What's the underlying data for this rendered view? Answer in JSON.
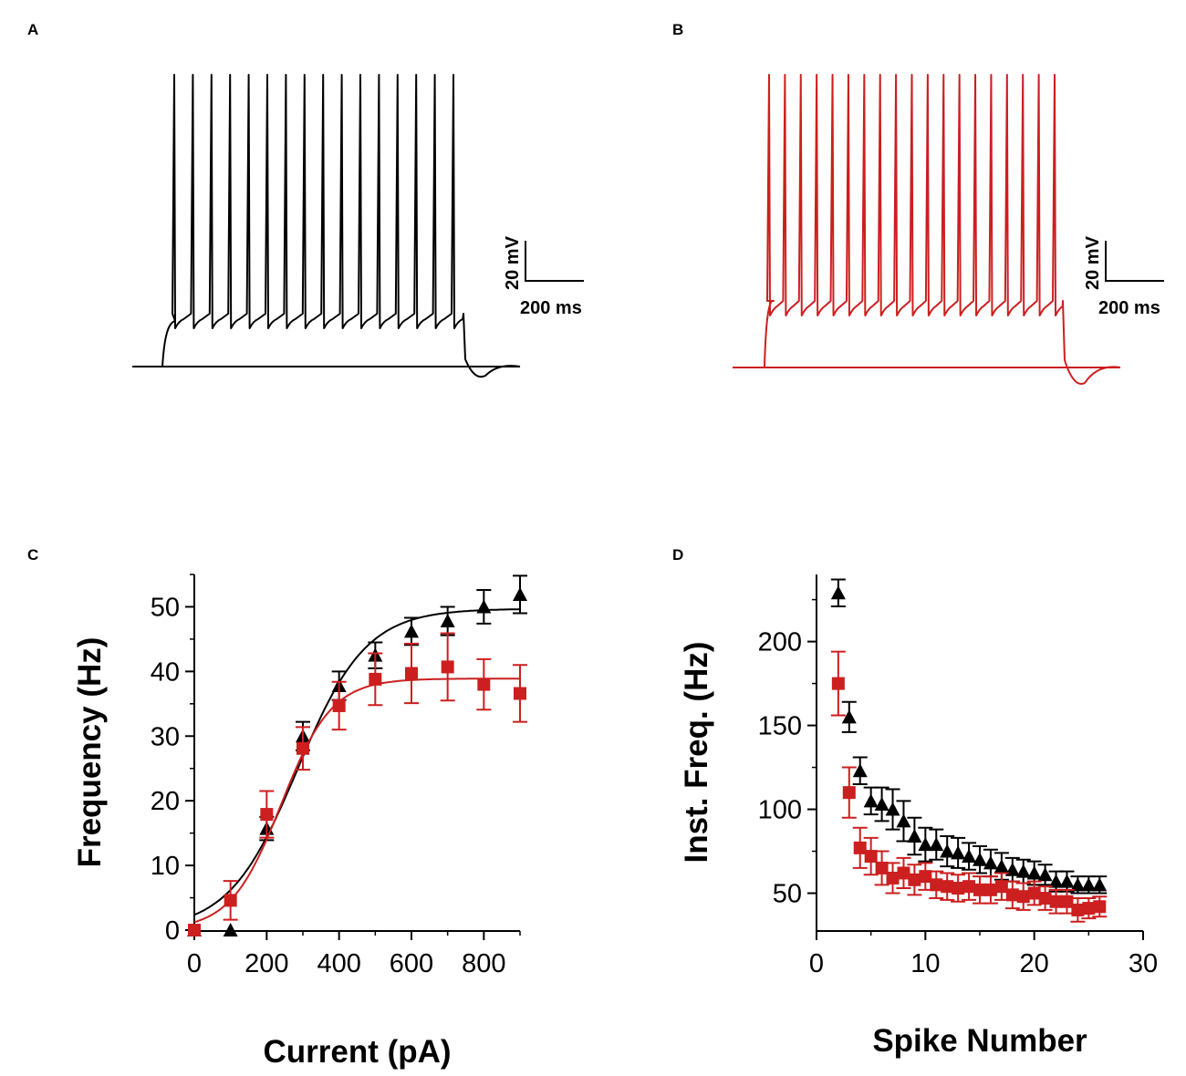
{
  "colors": {
    "control": "#000000",
    "treated": "#cc1f1f"
  },
  "panels": {
    "a": "A",
    "b": "B",
    "c": "C",
    "d": "D"
  },
  "scale_bars": {
    "a": {
      "voltage": "20 mV",
      "time": "200 ms"
    },
    "b": {
      "voltage": "20 mV",
      "time": "200 ms"
    }
  },
  "chart_data": [
    {
      "panel": "A",
      "type": "line",
      "description_type": "voltage-trace",
      "color": "#000000",
      "spike_count": 16
    },
    {
      "panel": "B",
      "type": "line",
      "description_type": "voltage-trace",
      "color": "#cc1f1f",
      "spike_count": 19
    },
    {
      "panel": "C",
      "type": "scatter",
      "xlabel": "Current (pA)",
      "ylabel": "Frequency (Hz)",
      "xlim": [
        0,
        900
      ],
      "ylim": [
        0,
        55
      ],
      "xticks": [
        0,
        200,
        400,
        600,
        800
      ],
      "xtick_labels": [
        "0",
        "200",
        "400",
        "600",
        "800"
      ],
      "yticks": [
        0,
        10,
        20,
        30,
        40,
        50
      ],
      "ytick_labels": [
        "0",
        "10",
        "20",
        "30",
        "40",
        "50"
      ],
      "series": [
        {
          "name": "black",
          "marker": "triangle",
          "color": "#000000",
          "x": [
            0,
            100,
            200,
            300,
            400,
            500,
            600,
            700,
            800,
            900
          ],
          "y": [
            0,
            0,
            15.7,
            30,
            37.8,
            42.5,
            46.2,
            47.8,
            50,
            51.9
          ],
          "err": [
            0,
            0,
            1.8,
            2.2,
            2.2,
            2.0,
            2.1,
            2.2,
            2.6,
            2.9
          ],
          "fit": {
            "max": 49.7,
            "half": 285,
            "slope": 95
          }
        },
        {
          "name": "red",
          "marker": "square",
          "color": "#cc1f1f",
          "x": [
            0,
            100,
            200,
            300,
            400,
            500,
            600,
            700,
            800,
            900
          ],
          "y": [
            0,
            4.6,
            17.9,
            28.1,
            34.7,
            38.8,
            39.7,
            40.7,
            38,
            36.6
          ],
          "err": [
            0,
            3.0,
            3.6,
            3.3,
            3.7,
            4.0,
            4.6,
            5.2,
            3.9,
            4.4
          ],
          "fit": {
            "max": 38.9,
            "half": 240,
            "slope": 70
          }
        }
      ]
    },
    {
      "panel": "D",
      "type": "scatter",
      "xlabel": "Spike Number",
      "ylabel": "Inst. Freq. (Hz)",
      "xlim": [
        0,
        30
      ],
      "ylim": [
        28,
        240
      ],
      "xticks": [
        0,
        10,
        20,
        30
      ],
      "xtick_labels": [
        "0",
        "10",
        "20",
        "30"
      ],
      "yticks": [
        50,
        100,
        150,
        200
      ],
      "ytick_labels": [
        "50",
        "100",
        "150",
        "200"
      ],
      "series": [
        {
          "name": "black",
          "marker": "triangle",
          "color": "#000000",
          "x": [
            2,
            3,
            4,
            5,
            6,
            7,
            8,
            9,
            10,
            11,
            12,
            13,
            14,
            15,
            16,
            17,
            18,
            19,
            20,
            21,
            22,
            23,
            24,
            25,
            26
          ],
          "y": [
            229,
            155,
            123,
            105,
            103,
            100,
            93,
            84,
            79,
            79,
            75,
            74,
            72,
            70,
            68,
            66,
            64,
            63,
            62,
            61,
            57,
            57,
            55,
            55,
            55
          ],
          "err": [
            8,
            9,
            8,
            8,
            10,
            12,
            12,
            11,
            10,
            9,
            9,
            9,
            8,
            8,
            8,
            8,
            7,
            7,
            7,
            6,
            6,
            6,
            5,
            5,
            5
          ]
        },
        {
          "name": "red",
          "marker": "square",
          "color": "#cc1f1f",
          "x": [
            2,
            3,
            4,
            5,
            6,
            7,
            8,
            9,
            10,
            11,
            12,
            13,
            14,
            15,
            16,
            17,
            18,
            19,
            20,
            21,
            22,
            23,
            24,
            25,
            26
          ],
          "y": [
            175,
            110,
            77,
            72,
            65,
            59,
            62,
            58,
            60,
            55,
            54,
            53,
            54,
            52,
            52,
            54,
            49,
            48,
            50,
            47,
            45,
            45,
            40,
            41,
            42
          ],
          "err": [
            19,
            15,
            12,
            11,
            10,
            9,
            9,
            9,
            8,
            8,
            8,
            8,
            8,
            8,
            8,
            8,
            8,
            8,
            7,
            7,
            7,
            7,
            7,
            6,
            6
          ]
        }
      ]
    }
  ]
}
